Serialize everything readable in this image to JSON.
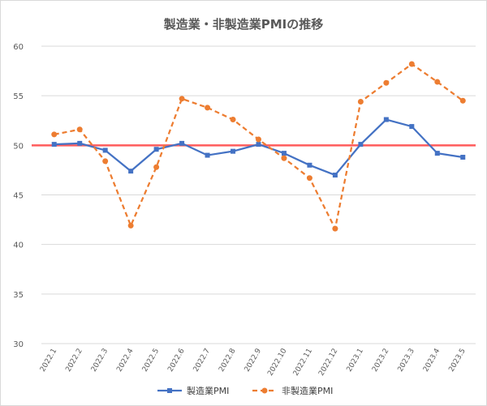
{
  "chart_data": {
    "type": "line",
    "title": "製造業・非製造業PMIの推移",
    "categories": [
      "2022.1",
      "2022.2",
      "2022.3",
      "2022.4",
      "2022.5",
      "2022.6",
      "2022.7",
      "2022.8",
      "2022.9",
      "2022.10",
      "2022.11",
      "2022.12",
      "2023.1",
      "2023.2",
      "2023.3",
      "2023.4",
      "2023.5"
    ],
    "series": [
      {
        "name": "製造業PMI",
        "color": "#4472c4",
        "line_style": "solid",
        "marker": "square",
        "values": [
          50.1,
          50.2,
          49.5,
          47.4,
          49.6,
          50.2,
          49.0,
          49.4,
          50.1,
          49.2,
          48.0,
          47.0,
          50.1,
          52.6,
          51.9,
          49.2,
          48.8
        ]
      },
      {
        "name": "非製造業PMI",
        "color": "#ed7d31",
        "line_style": "dashed",
        "marker": "circle",
        "values": [
          51.1,
          51.6,
          48.4,
          41.9,
          47.8,
          54.7,
          53.8,
          52.6,
          50.6,
          48.7,
          46.7,
          41.6,
          54.4,
          56.3,
          58.2,
          56.4,
          54.5
        ]
      }
    ],
    "reference_line": {
      "value": 50,
      "color": "#ff5b5b"
    },
    "ylim": [
      30,
      60
    ],
    "yticks": [
      30,
      35,
      40,
      45,
      50,
      55,
      60
    ],
    "xlabel": "",
    "ylabel": "",
    "grid": "horizontal",
    "legend_position": "bottom"
  }
}
